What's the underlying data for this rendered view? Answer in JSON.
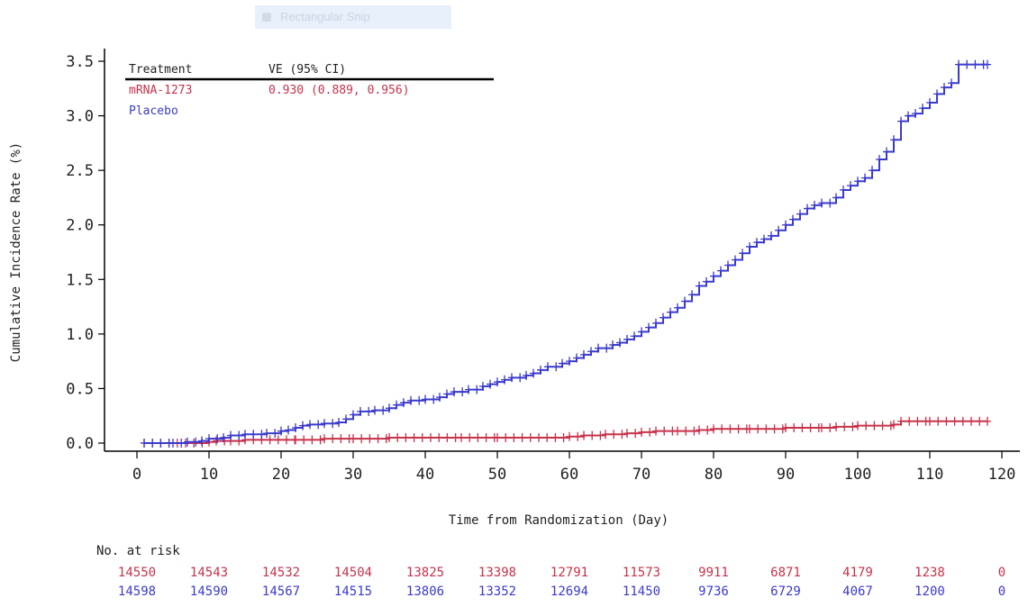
{
  "snip_tool": {
    "label": "Rectangular Snip"
  },
  "colors": {
    "vaccine": "#c8324b",
    "placebo": "#3a3acd",
    "axis": "#000000"
  },
  "chart_data": {
    "type": "line",
    "subtype": "step",
    "xlabel": "Time from Randomization (Day)",
    "ylabel": "Cumulative Incidence Rate (%)",
    "xlim": [
      -5,
      122
    ],
    "ylim": [
      -0.05,
      3.6
    ],
    "xticks": [
      0,
      10,
      20,
      30,
      40,
      50,
      60,
      70,
      80,
      90,
      100,
      110,
      120
    ],
    "yticks": [
      0.0,
      0.5,
      1.0,
      1.5,
      2.0,
      2.5,
      3.0,
      3.5
    ],
    "ytick_labels": [
      "0.0",
      "0.5",
      "1.0",
      "1.5",
      "2.0",
      "2.5",
      "3.0",
      "3.5"
    ],
    "grid": false,
    "legend": {
      "placement": "top-left",
      "header_treatment": "Treatment",
      "header_ve": "VE (95% CI)",
      "entries": [
        {
          "name": "mRNA-1273",
          "ve": "0.930 (0.889, 0.956)"
        },
        {
          "name": "Placebo",
          "ve": ""
        }
      ]
    },
    "series": [
      {
        "name": "mRNA-1273",
        "color": "#c8324b",
        "points": [
          [
            1,
            0.0
          ],
          [
            10,
            0.01
          ],
          [
            11,
            0.02
          ],
          [
            13,
            0.02
          ],
          [
            15,
            0.03
          ],
          [
            22,
            0.03
          ],
          [
            26,
            0.04
          ],
          [
            30,
            0.04
          ],
          [
            35,
            0.05
          ],
          [
            45,
            0.05
          ],
          [
            50,
            0.05
          ],
          [
            60,
            0.06
          ],
          [
            62,
            0.07
          ],
          [
            65,
            0.08
          ],
          [
            68,
            0.09
          ],
          [
            70,
            0.1
          ],
          [
            72,
            0.11
          ],
          [
            75,
            0.11
          ],
          [
            78,
            0.12
          ],
          [
            80,
            0.13
          ],
          [
            85,
            0.13
          ],
          [
            90,
            0.14
          ],
          [
            95,
            0.14
          ],
          [
            97,
            0.15
          ],
          [
            100,
            0.16
          ],
          [
            105,
            0.17
          ],
          [
            106,
            0.2
          ],
          [
            110,
            0.2
          ],
          [
            118,
            0.2
          ]
        ]
      },
      {
        "name": "Placebo",
        "color": "#3a3acd",
        "points": [
          [
            1,
            0.0
          ],
          [
            5,
            0.0
          ],
          [
            7,
            0.01
          ],
          [
            9,
            0.02
          ],
          [
            10,
            0.04
          ],
          [
            12,
            0.05
          ],
          [
            13,
            0.07
          ],
          [
            15,
            0.08
          ],
          [
            18,
            0.09
          ],
          [
            20,
            0.11
          ],
          [
            21,
            0.12
          ],
          [
            22,
            0.14
          ],
          [
            23,
            0.16
          ],
          [
            24,
            0.17
          ],
          [
            26,
            0.18
          ],
          [
            28,
            0.19
          ],
          [
            29,
            0.22
          ],
          [
            30,
            0.26
          ],
          [
            31,
            0.29
          ],
          [
            33,
            0.3
          ],
          [
            35,
            0.32
          ],
          [
            36,
            0.35
          ],
          [
            37,
            0.37
          ],
          [
            38,
            0.39
          ],
          [
            40,
            0.4
          ],
          [
            42,
            0.42
          ],
          [
            43,
            0.45
          ],
          [
            44,
            0.47
          ],
          [
            46,
            0.49
          ],
          [
            48,
            0.52
          ],
          [
            49,
            0.54
          ],
          [
            50,
            0.56
          ],
          [
            51,
            0.58
          ],
          [
            52,
            0.6
          ],
          [
            54,
            0.62
          ],
          [
            55,
            0.64
          ],
          [
            56,
            0.67
          ],
          [
            57,
            0.7
          ],
          [
            59,
            0.73
          ],
          [
            60,
            0.75
          ],
          [
            61,
            0.78
          ],
          [
            62,
            0.81
          ],
          [
            63,
            0.84
          ],
          [
            64,
            0.87
          ],
          [
            66,
            0.9
          ],
          [
            67,
            0.92
          ],
          [
            68,
            0.95
          ],
          [
            69,
            0.98
          ],
          [
            70,
            1.02
          ],
          [
            71,
            1.06
          ],
          [
            72,
            1.1
          ],
          [
            73,
            1.15
          ],
          [
            74,
            1.2
          ],
          [
            75,
            1.24
          ],
          [
            76,
            1.3
          ],
          [
            77,
            1.36
          ],
          [
            78,
            1.44
          ],
          [
            79,
            1.48
          ],
          [
            80,
            1.53
          ],
          [
            81,
            1.58
          ],
          [
            82,
            1.63
          ],
          [
            83,
            1.68
          ],
          [
            84,
            1.74
          ],
          [
            85,
            1.8
          ],
          [
            86,
            1.84
          ],
          [
            87,
            1.87
          ],
          [
            88,
            1.9
          ],
          [
            89,
            1.95
          ],
          [
            90,
            2.0
          ],
          [
            91,
            2.05
          ],
          [
            92,
            2.1
          ],
          [
            93,
            2.15
          ],
          [
            94,
            2.18
          ],
          [
            95,
            2.2
          ],
          [
            97,
            2.25
          ],
          [
            98,
            2.32
          ],
          [
            99,
            2.36
          ],
          [
            100,
            2.4
          ],
          [
            101,
            2.43
          ],
          [
            102,
            2.5
          ],
          [
            103,
            2.6
          ],
          [
            104,
            2.67
          ],
          [
            105,
            2.78
          ],
          [
            106,
            2.95
          ],
          [
            107,
            3.0
          ],
          [
            108,
            3.02
          ],
          [
            109,
            3.07
          ],
          [
            110,
            3.12
          ],
          [
            111,
            3.2
          ],
          [
            112,
            3.26
          ],
          [
            113,
            3.3
          ],
          [
            114,
            3.47
          ],
          [
            118,
            3.47
          ]
        ]
      }
    ],
    "at_risk": {
      "title": "No. at risk",
      "times": [
        0,
        10,
        20,
        30,
        40,
        50,
        60,
        70,
        80,
        90,
        100,
        110,
        120
      ],
      "rows": [
        {
          "name": "mRNA-1273",
          "color": "#c8324b",
          "values": [
            "14550",
            "14543",
            "14532",
            "14504",
            "13825",
            "13398",
            "12791",
            "11573",
            "9911",
            "6871",
            "4179",
            "1238",
            "0"
          ]
        },
        {
          "name": "Placebo",
          "color": "#3a3acd",
          "values": [
            "14598",
            "14590",
            "14567",
            "14515",
            "13806",
            "13352",
            "12694",
            "11450",
            "9736",
            "6729",
            "4067",
            "1200",
            "0"
          ]
        }
      ]
    }
  }
}
